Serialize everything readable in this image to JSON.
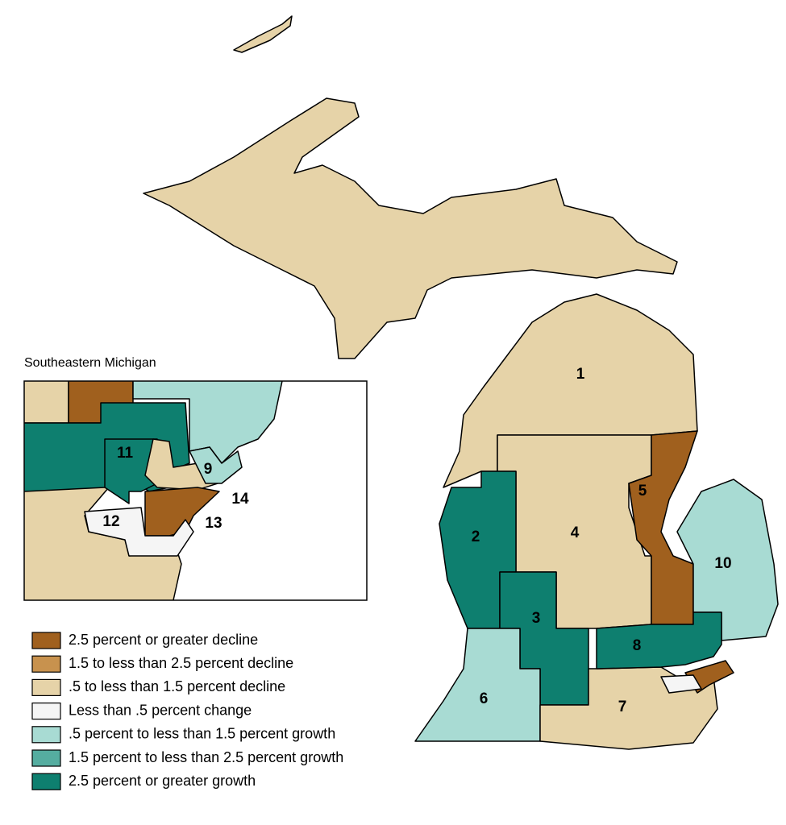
{
  "inset_title": "Southeastern Michigan",
  "districts": [
    {
      "label": "1",
      "color": "#e6d3a8"
    },
    {
      "label": "2",
      "color": "#0e7f6f"
    },
    {
      "label": "3",
      "color": "#0e7f6f"
    },
    {
      "label": "4",
      "color": "#e6d3a8"
    },
    {
      "label": "5",
      "color": "#a0601e"
    },
    {
      "label": "6",
      "color": "#a8dbd3"
    },
    {
      "label": "7",
      "color": "#e6d3a8"
    },
    {
      "label": "8",
      "color": "#0e7f6f"
    },
    {
      "label": "9",
      "color": "#a8dbd3"
    },
    {
      "label": "10",
      "color": "#a8dbd3"
    },
    {
      "label": "11",
      "color": "#0e7f6f"
    },
    {
      "label": "12",
      "color": "#f5f5f5"
    },
    {
      "label": "13",
      "color": "#a0601e"
    },
    {
      "label": "14",
      "color": "#e6d3a8"
    }
  ],
  "legend": [
    {
      "label": "2.5 percent or greater decline",
      "color": "#a0601e"
    },
    {
      "label": "1.5 to less than 2.5 percent decline",
      "color": "#c8924e"
    },
    {
      "label": ".5 to less than 1.5 percent decline",
      "color": "#e6d3a8"
    },
    {
      "label": "Less than .5 percent change",
      "color": "#f5f5f5"
    },
    {
      "label": ".5 percent to less than 1.5 percent growth",
      "color": "#a8dbd3"
    },
    {
      "label": "1.5 percent to less than 2.5 percent growth",
      "color": "#55ada0"
    },
    {
      "label": "2.5 percent or greater growth",
      "color": "#0e7f6f"
    }
  ]
}
